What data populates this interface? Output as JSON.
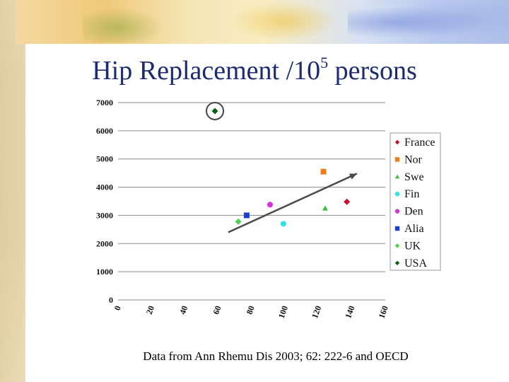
{
  "slide": {
    "title_main": "Hip Replacement /10",
    "title_sup": "5",
    "title_tail": " persons",
    "caption": "Data from Ann Rhemu Dis 2003; 62: 222-6 and OECD"
  },
  "chart_data": {
    "type": "scatter",
    "title": "",
    "xlabel": "",
    "ylabel": "",
    "xlim": [
      0,
      160
    ],
    "ylim": [
      0,
      7000
    ],
    "x_ticks": [
      "0",
      "20",
      "40",
      "60",
      "80",
      "100",
      "120",
      "140",
      "160"
    ],
    "y_ticks": [
      "0",
      "1000",
      "2000",
      "3000",
      "4000",
      "5000",
      "6000",
      "7000"
    ],
    "grid": "horizontal",
    "legend_position": "right",
    "series": [
      {
        "name": "France",
        "color": "#c8102e",
        "marker": "diamond",
        "points": [
          [
            137,
            3480
          ]
        ]
      },
      {
        "name": "Nor",
        "color": "#f07c1a",
        "marker": "square",
        "points": [
          [
            123,
            4550
          ]
        ]
      },
      {
        "name": "Swe",
        "color": "#3cbf3c",
        "marker": "triangle",
        "points": [
          [
            124,
            3250
          ]
        ]
      },
      {
        "name": "Fin",
        "color": "#33e0e6",
        "marker": "circle",
        "points": [
          [
            99,
            2700
          ]
        ]
      },
      {
        "name": "Den",
        "color": "#d633d6",
        "marker": "circle",
        "points": [
          [
            91,
            3380
          ]
        ]
      },
      {
        "name": "Alia",
        "color": "#1a3fd6",
        "marker": "square",
        "points": [
          [
            77,
            3000
          ]
        ]
      },
      {
        "name": "UK",
        "color": "#4ed04e",
        "marker": "diamond",
        "points": [
          [
            72,
            2780
          ]
        ]
      },
      {
        "name": "USA",
        "color": "#0b5d12",
        "marker": "diamond",
        "points": [
          [
            58,
            6700
          ]
        ]
      }
    ],
    "trend_line": {
      "from": [
        66,
        2400
      ],
      "to": [
        143,
        4480
      ],
      "color": "#4a4a4a",
      "arrow": true
    },
    "highlight_circle": {
      "series": "USA",
      "point": [
        58,
        6700
      ]
    }
  }
}
